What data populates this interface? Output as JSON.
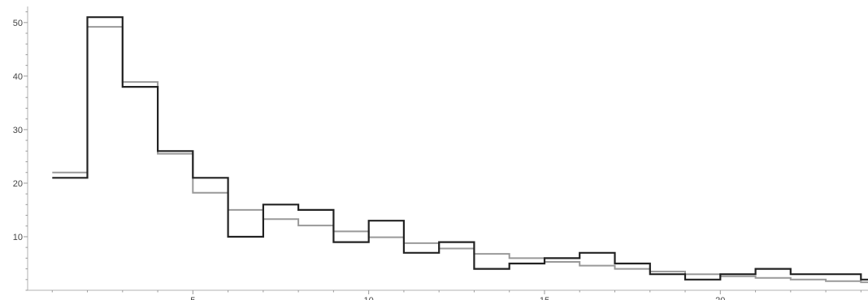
{
  "chart_data": {
    "type": "line",
    "subtype": "step-histogram",
    "title": "",
    "xlabel": "",
    "ylabel": "",
    "xlim": [
      0.3,
      24.2
    ],
    "ylim": [
      0,
      53
    ],
    "grid": false,
    "legend": "none",
    "x_ticks": [
      5,
      10,
      15,
      20
    ],
    "x_tick_labels": [
      "5",
      "10",
      "15",
      "20"
    ],
    "y_ticks": [
      10,
      20,
      30,
      40,
      50
    ],
    "y_tick_labels": [
      "10",
      "20",
      "30",
      "40",
      "50"
    ],
    "bin_edges": [
      1,
      2,
      3,
      4,
      5,
      6,
      7,
      8,
      9,
      10,
      11,
      12,
      13,
      14,
      15,
      16,
      17,
      18,
      19,
      20,
      21,
      22,
      23,
      24
    ],
    "series": [
      {
        "color": "#999999",
        "values": [
          22,
          49.2,
          38.9,
          25.5,
          18.2,
          15,
          13.3,
          12.1,
          11,
          9.9,
          8.8,
          7.8,
          6.8,
          6,
          5.3,
          4.6,
          4,
          3.5,
          3,
          2.6,
          2.3,
          2,
          1.7,
          1.5
        ]
      },
      {
        "color": "#222222",
        "values": [
          21,
          51,
          38,
          26,
          21,
          10,
          16,
          15,
          9,
          13,
          7,
          9,
          4,
          5,
          6,
          7,
          5,
          3,
          2,
          3,
          4,
          3,
          3,
          2
        ]
      }
    ]
  }
}
